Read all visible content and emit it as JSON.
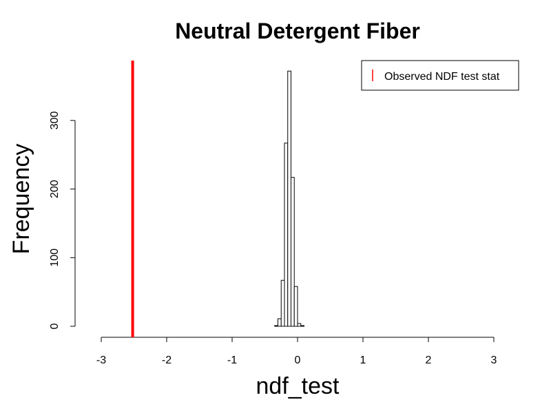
{
  "chart_data": {
    "type": "bar",
    "title": "Neutral Detergent Fiber",
    "xlabel": "ndf_test",
    "ylabel": "Frequency",
    "xlim": [
      -3,
      3
    ],
    "ylim": [
      0,
      375
    ],
    "x_ticks": [
      -3,
      -2,
      -1,
      0,
      1,
      2,
      3
    ],
    "y_ticks": [
      0,
      100,
      200,
      300
    ],
    "bins": [
      {
        "x0": -0.35,
        "x1": -0.3,
        "count": 1
      },
      {
        "x0": -0.3,
        "x1": -0.25,
        "count": 11
      },
      {
        "x0": -0.25,
        "x1": -0.2,
        "count": 67
      },
      {
        "x0": -0.2,
        "x1": -0.15,
        "count": 267
      },
      {
        "x0": -0.15,
        "x1": -0.1,
        "count": 372
      },
      {
        "x0": -0.1,
        "x1": -0.05,
        "count": 217
      },
      {
        "x0": -0.05,
        "x1": 0.0,
        "count": 58
      },
      {
        "x0": 0.0,
        "x1": 0.05,
        "count": 4
      },
      {
        "x0": 0.05,
        "x1": 0.1,
        "count": 1
      }
    ],
    "observed_value": -2.52,
    "observed_color": "#ff0000",
    "legend": {
      "position": "top-right",
      "entries": [
        {
          "label": "Observed NDF test stat",
          "color": "#ff0000"
        }
      ]
    },
    "grid": false
  }
}
